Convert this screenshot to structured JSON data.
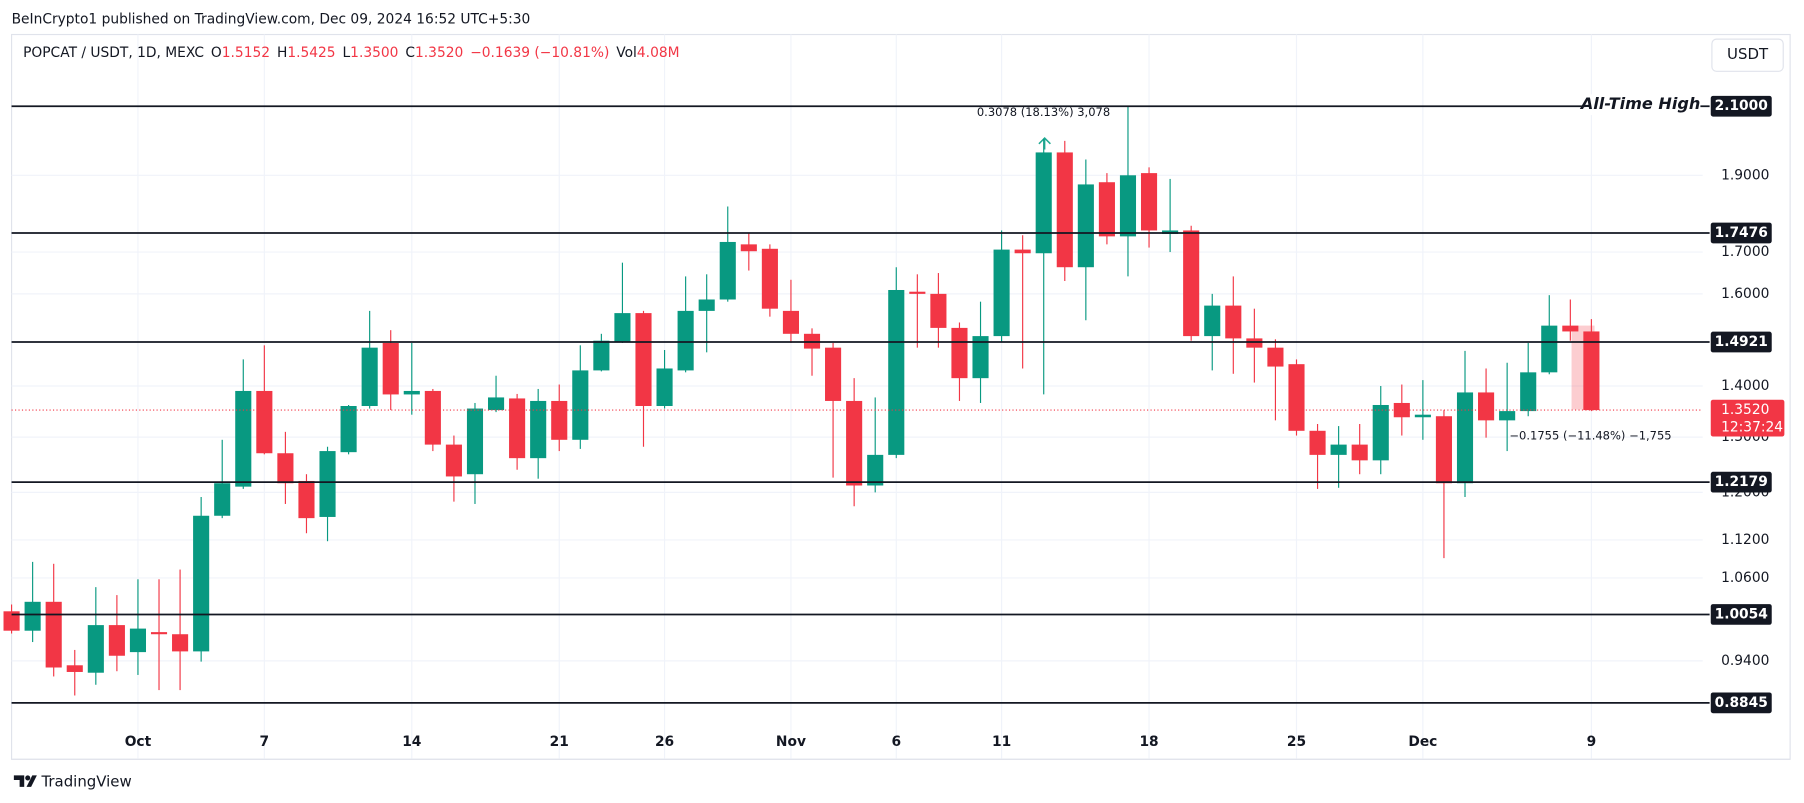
{
  "header": {
    "published": "BeInCrypto1 published on TradingView.com, Dec 09, 2024 16:52 UTC+5:30",
    "currency_button": "USDT",
    "brand": "TradingView"
  },
  "legend": {
    "symbol": "POPCAT / USDT, 1D, MEXC",
    "items": [
      {
        "label": "O",
        "value": "1.5152"
      },
      {
        "label": "H",
        "value": "1.5425"
      },
      {
        "label": "L",
        "value": "1.3500"
      },
      {
        "label": "C",
        "value": "1.3520"
      }
    ],
    "change": "−0.1639 (−10.81%)",
    "vol_label": "Vol",
    "vol": "4.08M"
  },
  "chart_data": {
    "type": "candlestick",
    "log": true,
    "grid": true,
    "up_color": "#089981",
    "down_color": "#f23645",
    "categories": [
      null,
      null,
      null,
      null,
      null,
      null,
      "Oct",
      null,
      null,
      null,
      null,
      null,
      "7",
      null,
      null,
      null,
      null,
      null,
      null,
      "14",
      null,
      null,
      null,
      null,
      null,
      null,
      "21",
      null,
      null,
      null,
      null,
      "26",
      null,
      null,
      null,
      null,
      null,
      "Nov",
      null,
      null,
      null,
      null,
      "6",
      null,
      null,
      null,
      null,
      "11",
      null,
      null,
      null,
      null,
      null,
      null,
      "18",
      null,
      null,
      null,
      null,
      null,
      null,
      "25",
      null,
      null,
      null,
      null,
      null,
      "Dec",
      null,
      null,
      null,
      null,
      null,
      null,
      null,
      "9"
    ],
    "open": [
      1.01,
      0.982,
      1.024,
      0.934,
      0.924,
      0.99,
      0.952,
      0.98,
      0.977,
      0.953,
      1.16,
      1.21,
      1.39,
      1.27,
      1.22,
      1.158,
      1.272,
      1.36,
      1.49,
      1.383,
      1.39,
      1.286,
      1.232,
      1.352,
      1.375,
      1.261,
      1.37,
      1.295,
      1.432,
      1.493,
      1.556,
      1.36,
      1.432,
      1.561,
      1.587,
      1.719,
      1.708,
      1.561,
      1.51,
      1.48,
      1.37,
      1.212,
      1.267,
      1.605,
      1.6,
      1.523,
      1.416,
      1.505,
      1.706,
      1.697,
      1.964,
      1.663,
      1.881,
      1.739,
      1.906,
      1.745,
      1.754,
      1.505,
      1.573,
      1.5,
      1.48,
      1.445,
      1.312,
      1.267,
      1.286,
      1.257,
      1.366,
      1.338,
      1.34,
      1.216,
      1.387,
      1.332,
      1.35,
      1.428,
      1.528,
      1.5152
    ],
    "high": [
      1.02,
      1.085,
      1.082,
      0.955,
      1.046,
      1.034,
      1.058,
      1.058,
      1.073,
      1.192,
      1.295,
      1.455,
      1.485,
      1.31,
      1.232,
      1.282,
      1.362,
      1.561,
      1.518,
      1.49,
      1.394,
      1.303,
      1.366,
      1.421,
      1.384,
      1.394,
      1.403,
      1.485,
      1.51,
      1.674,
      1.561,
      1.475,
      1.641,
      1.646,
      1.816,
      1.748,
      1.719,
      1.633,
      1.522,
      1.49,
      1.416,
      1.377,
      1.663,
      1.646,
      1.649,
      1.535,
      1.582,
      1.754,
      1.742,
      2.004,
      1.997,
      1.944,
      1.906,
      2.1,
      1.922,
      1.89,
      1.766,
      1.6,
      1.641,
      1.566,
      1.498,
      1.455,
      1.325,
      1.321,
      1.325,
      1.4,
      1.403,
      1.412,
      1.352,
      1.473,
      1.436,
      1.448,
      1.49,
      1.597,
      1.587,
      1.5425
    ],
    "low": [
      0.978,
      0.966,
      0.919,
      0.894,
      0.908,
      0.926,
      0.921,
      0.901,
      0.901,
      0.939,
      1.156,
      1.206,
      1.268,
      1.18,
      1.131,
      1.118,
      1.268,
      1.355,
      1.352,
      1.343,
      1.274,
      1.184,
      1.18,
      1.348,
      1.24,
      1.224,
      1.274,
      1.278,
      1.43,
      1.49,
      1.282,
      1.355,
      1.428,
      1.47,
      1.582,
      1.655,
      1.548,
      1.49,
      1.421,
      1.226,
      1.176,
      1.2,
      1.261,
      1.48,
      1.48,
      1.37,
      1.366,
      1.493,
      1.436,
      1.383,
      1.63,
      1.54,
      1.719,
      1.641,
      1.711,
      1.7,
      1.495,
      1.432,
      1.425,
      1.407,
      1.332,
      1.303,
      1.206,
      1.208,
      1.232,
      1.232,
      1.303,
      1.295,
      1.091,
      1.192,
      1.299,
      1.274,
      1.34,
      1.424,
      1.495,
      1.35
    ],
    "close": [
      0.982,
      1.024,
      0.931,
      0.925,
      0.99,
      0.947,
      0.985,
      0.977,
      0.953,
      1.16,
      1.216,
      1.39,
      1.27,
      1.216,
      1.156,
      1.274,
      1.36,
      1.48,
      1.383,
      1.39,
      1.286,
      1.228,
      1.355,
      1.377,
      1.261,
      1.37,
      1.295,
      1.432,
      1.495,
      1.556,
      1.36,
      1.436,
      1.561,
      1.587,
      1.725,
      1.702,
      1.566,
      1.51,
      1.478,
      1.37,
      1.212,
      1.267,
      1.609,
      1.6,
      1.523,
      1.416,
      1.505,
      1.706,
      1.697,
      1.964,
      1.663,
      1.875,
      1.739,
      1.9,
      1.754,
      1.754,
      1.505,
      1.573,
      1.5,
      1.48,
      1.44,
      1.312,
      1.267,
      1.286,
      1.257,
      1.362,
      1.338,
      1.343,
      1.216,
      1.387,
      1.332,
      1.35,
      1.428,
      1.528,
      1.5152,
      1.352
    ],
    "ylim": [
      0.854,
      2.33
    ],
    "yticks": [
      {
        "value": 0.94,
        "label": "0.9400"
      },
      {
        "value": 1.06,
        "label": "1.0600"
      },
      {
        "value": 1.12,
        "label": "1.1200"
      },
      {
        "value": 1.2,
        "label": "1.2000"
      },
      {
        "value": 1.3,
        "label": "1.3000"
      },
      {
        "value": 1.4,
        "label": "1.4000"
      },
      {
        "value": 1.6,
        "label": "1.6000"
      },
      {
        "value": 1.7,
        "label": "1.7000"
      },
      {
        "value": 1.9,
        "label": "1.9000"
      }
    ],
    "levels": [
      {
        "value": 2.1,
        "label": "2.1000"
      },
      {
        "value": 1.7476,
        "label": "1.7476"
      },
      {
        "value": 1.4921,
        "label": "1.4921"
      },
      {
        "value": 1.2179,
        "label": "1.2179"
      },
      {
        "value": 1.0054,
        "label": "1.0054"
      },
      {
        "value": 0.8845,
        "label": "0.8845"
      }
    ],
    "last_price": {
      "value": 1.352,
      "label": "1.3520",
      "countdown": "12:37:24"
    },
    "annotations": {
      "ath": "All-Time High",
      "measure_up": "0.3078 (18.13%) 3,078",
      "measure_down": "−0.1755 (−11.48%) −1,755"
    }
  }
}
